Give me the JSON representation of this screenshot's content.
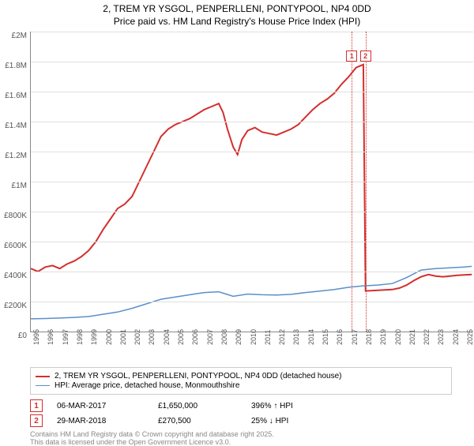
{
  "title": "2, TREM YR YSGOL, PENPERLLENI, PONTYPOOL, NP4 0DD",
  "subtitle": "Price paid vs. HM Land Registry's House Price Index (HPI)",
  "chart": {
    "type": "line",
    "x_years": [
      1995,
      1996,
      1997,
      1998,
      1999,
      2000,
      2001,
      2002,
      2003,
      2004,
      2005,
      2006,
      2007,
      2008,
      2009,
      2010,
      2011,
      2012,
      2013,
      2014,
      2015,
      2016,
      2017,
      2018,
      2019,
      2020,
      2021,
      2022,
      2023,
      2024,
      2025
    ],
    "ylim": [
      0,
      2000000
    ],
    "ytick_step": 200000,
    "y_tick_labels": [
      "£0",
      "£200K",
      "£400K",
      "£600K",
      "£800K",
      "£1M",
      "£1.2M",
      "£1.4M",
      "£1.6M",
      "£1.8M",
      "£2M"
    ],
    "background_color": "#ffffff",
    "grid_color": "#e0e0e0",
    "axis_color": "#888888",
    "label_fontsize": 10,
    "series": [
      {
        "name": "price_paid",
        "color": "#d32f2f",
        "line_width": 2,
        "legend": "2, TREM YR YSGOL, PENPERLLENI, PONTYPOOL, NP4 0DD (detached house)",
        "points": [
          [
            1995,
            420000
          ],
          [
            1995.5,
            400000
          ],
          [
            1996,
            430000
          ],
          [
            1996.5,
            440000
          ],
          [
            1997,
            420000
          ],
          [
            1997.5,
            450000
          ],
          [
            1998,
            470000
          ],
          [
            1998.5,
            500000
          ],
          [
            1999,
            540000
          ],
          [
            1999.5,
            600000
          ],
          [
            2000,
            680000
          ],
          [
            2000.5,
            750000
          ],
          [
            2001,
            820000
          ],
          [
            2001.5,
            850000
          ],
          [
            2002,
            900000
          ],
          [
            2002.5,
            1000000
          ],
          [
            2003,
            1100000
          ],
          [
            2003.5,
            1200000
          ],
          [
            2004,
            1300000
          ],
          [
            2004.5,
            1350000
          ],
          [
            2005,
            1380000
          ],
          [
            2005.5,
            1400000
          ],
          [
            2006,
            1420000
          ],
          [
            2006.5,
            1450000
          ],
          [
            2007,
            1480000
          ],
          [
            2007.5,
            1500000
          ],
          [
            2008,
            1520000
          ],
          [
            2008.3,
            1460000
          ],
          [
            2008.6,
            1350000
          ],
          [
            2009,
            1230000
          ],
          [
            2009.3,
            1180000
          ],
          [
            2009.6,
            1280000
          ],
          [
            2010,
            1340000
          ],
          [
            2010.5,
            1360000
          ],
          [
            2011,
            1330000
          ],
          [
            2011.5,
            1320000
          ],
          [
            2012,
            1310000
          ],
          [
            2012.5,
            1330000
          ],
          [
            2013,
            1350000
          ],
          [
            2013.5,
            1380000
          ],
          [
            2014,
            1430000
          ],
          [
            2014.5,
            1480000
          ],
          [
            2015,
            1520000
          ],
          [
            2015.5,
            1550000
          ],
          [
            2016,
            1590000
          ],
          [
            2016.5,
            1650000
          ],
          [
            2017,
            1700000
          ],
          [
            2017.5,
            1760000
          ],
          [
            2018,
            1780000
          ],
          [
            2018.15,
            270500
          ],
          [
            2018.5,
            272000
          ],
          [
            2019,
            275000
          ],
          [
            2019.5,
            278000
          ],
          [
            2020,
            280000
          ],
          [
            2020.5,
            290000
          ],
          [
            2021,
            310000
          ],
          [
            2021.5,
            340000
          ],
          [
            2022,
            365000
          ],
          [
            2022.5,
            380000
          ],
          [
            2023,
            370000
          ],
          [
            2023.5,
            365000
          ],
          [
            2024,
            370000
          ],
          [
            2024.5,
            375000
          ],
          [
            2025,
            378000
          ],
          [
            2025.5,
            380000
          ]
        ]
      },
      {
        "name": "hpi",
        "color": "#5a8fc7",
        "line_width": 1.5,
        "legend": "HPI: Average price, detached house, Monmouthshire",
        "points": [
          [
            1995,
            85000
          ],
          [
            1996,
            87000
          ],
          [
            1997,
            90000
          ],
          [
            1998,
            94000
          ],
          [
            1999,
            100000
          ],
          [
            2000,
            115000
          ],
          [
            2001,
            130000
          ],
          [
            2002,
            155000
          ],
          [
            2003,
            185000
          ],
          [
            2004,
            215000
          ],
          [
            2005,
            230000
          ],
          [
            2006,
            245000
          ],
          [
            2007,
            260000
          ],
          [
            2008,
            265000
          ],
          [
            2009,
            235000
          ],
          [
            2010,
            250000
          ],
          [
            2011,
            245000
          ],
          [
            2012,
            243000
          ],
          [
            2013,
            248000
          ],
          [
            2014,
            260000
          ],
          [
            2015,
            270000
          ],
          [
            2016,
            280000
          ],
          [
            2017,
            295000
          ],
          [
            2018,
            305000
          ],
          [
            2019,
            310000
          ],
          [
            2020,
            320000
          ],
          [
            2021,
            360000
          ],
          [
            2022,
            410000
          ],
          [
            2023,
            420000
          ],
          [
            2024,
            425000
          ],
          [
            2025,
            430000
          ],
          [
            2025.5,
            435000
          ]
        ]
      }
    ],
    "markers": [
      {
        "id": "1",
        "x": 2017.2,
        "y_top": 1780000,
        "color": "#d32f2f"
      },
      {
        "id": "2",
        "x": 2018.15,
        "y_top": 1780000,
        "color": "#d32f2f"
      }
    ]
  },
  "legend": {
    "border_color": "#cccccc"
  },
  "sales": [
    {
      "marker": "1",
      "marker_color": "#d32f2f",
      "date": "06-MAR-2017",
      "price": "£1,650,000",
      "pct": "396% ↑ HPI"
    },
    {
      "marker": "2",
      "marker_color": "#d32f2f",
      "date": "29-MAR-2018",
      "price": "£270,500",
      "pct": "25% ↓ HPI"
    }
  ],
  "footer": {
    "line1": "Contains HM Land Registry data © Crown copyright and database right 2025.",
    "line2": "This data is licensed under the Open Government Licence v3.0."
  }
}
